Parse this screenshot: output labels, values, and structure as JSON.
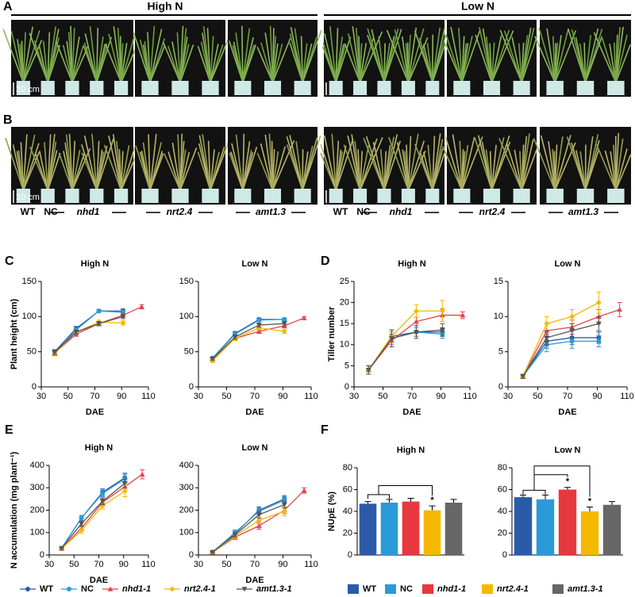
{
  "photos": {
    "panels": [
      "A",
      "B"
    ],
    "groups": [
      "High N",
      "Low N"
    ],
    "scale_bar": "20 cm",
    "genotypes": [
      "WT",
      "NC",
      "nhd1",
      "nrt2.4",
      "amt1.3"
    ]
  },
  "chart_data": [
    {
      "type": "line",
      "panel": "C",
      "title": "High N",
      "xlabel": "DAE",
      "ylabel": "Plant height (cm)",
      "xlim": [
        30,
        110
      ],
      "xticks": [
        30,
        50,
        70,
        90,
        110
      ],
      "ylim": [
        0,
        150
      ],
      "yticks": [
        0,
        50,
        100,
        150
      ],
      "series": [
        {
          "name": "WT",
          "color": "#2b5ba8",
          "marker": "circle",
          "x": [
            40,
            56,
            73,
            91
          ],
          "values": [
            50,
            83,
            108,
            108
          ],
          "errors": [
            3,
            3,
            2,
            3
          ]
        },
        {
          "name": "NC",
          "color": "#2b9ad8",
          "marker": "circle",
          "x": [
            40,
            56,
            73,
            91
          ],
          "values": [
            48,
            81,
            108,
            106
          ],
          "errors": [
            3,
            3,
            2,
            3
          ]
        },
        {
          "name": "nhd1-1",
          "color": "#e0474c",
          "marker": "triangle",
          "italic": true,
          "x": [
            40,
            56,
            73,
            91,
            105
          ],
          "values": [
            48,
            75,
            90,
            102,
            114
          ],
          "errors": [
            3,
            3,
            3,
            3,
            3
          ]
        },
        {
          "name": "nrt2.4-1",
          "color": "#f5b800",
          "marker": "diamond",
          "italic": true,
          "x": [
            40,
            56,
            73,
            91
          ],
          "values": [
            47,
            78,
            92,
            91
          ],
          "errors": [
            3,
            3,
            3,
            3
          ]
        },
        {
          "name": "amt1.3-1",
          "color": "#555555",
          "marker": "triangle-down",
          "italic": true,
          "x": [
            40,
            56,
            73,
            91
          ],
          "values": [
            49,
            78,
            90,
            100
          ],
          "errors": [
            3,
            3,
            3,
            3
          ]
        }
      ]
    },
    {
      "type": "line",
      "title": "Low N",
      "xlabel": "DAE",
      "xlim": [
        30,
        110
      ],
      "xticks": [
        30,
        50,
        70,
        90,
        110
      ],
      "ylim": [
        0,
        150
      ],
      "yticks": [
        0,
        50,
        100,
        150
      ],
      "series": [
        {
          "name": "WT",
          "color": "#2b5ba8",
          "marker": "circle",
          "x": [
            40,
            56,
            73,
            91
          ],
          "values": [
            41,
            76,
            96,
            96
          ],
          "errors": [
            2,
            3,
            2,
            2
          ]
        },
        {
          "name": "NC",
          "color": "#2b9ad8",
          "marker": "circle",
          "x": [
            40,
            56,
            73,
            91
          ],
          "values": [
            41,
            75,
            95,
            96
          ],
          "errors": [
            2,
            3,
            2,
            2
          ]
        },
        {
          "name": "nhd1-1",
          "color": "#e0474c",
          "marker": "triangle",
          "italic": true,
          "x": [
            40,
            56,
            73,
            91,
            105
          ],
          "values": [
            39,
            69,
            79,
            87,
            98
          ],
          "errors": [
            2,
            3,
            3,
            3,
            2
          ]
        },
        {
          "name": "nrt2.4-1",
          "color": "#f5b800",
          "marker": "diamond",
          "italic": true,
          "x": [
            40,
            56,
            73,
            91
          ],
          "values": [
            37,
            69,
            84,
            79
          ],
          "errors": [
            2,
            3,
            3,
            3
          ]
        },
        {
          "name": "amt1.3-1",
          "color": "#555555",
          "marker": "triangle-down",
          "italic": true,
          "x": [
            40,
            56,
            73,
            91
          ],
          "values": [
            40,
            71,
            88,
            90
          ],
          "errors": [
            2,
            3,
            3,
            3
          ]
        }
      ]
    },
    {
      "type": "line",
      "panel": "D",
      "title": "High N",
      "xlabel": "DAE",
      "ylabel": "Tiller number",
      "xlim": [
        30,
        110
      ],
      "xticks": [
        30,
        50,
        70,
        90,
        110
      ],
      "ylim": [
        0,
        25
      ],
      "yticks": [
        0,
        5,
        10,
        15,
        20,
        25
      ],
      "series": [
        {
          "name": "WT",
          "color": "#2b5ba8",
          "marker": "circle",
          "x": [
            40,
            56,
            73,
            91
          ],
          "values": [
            4,
            12,
            13,
            13
          ],
          "errors": [
            1,
            1.5,
            1,
            1
          ]
        },
        {
          "name": "NC",
          "color": "#2b9ad8",
          "marker": "circle",
          "x": [
            40,
            56,
            73,
            91
          ],
          "values": [
            4,
            11.5,
            13,
            12.5
          ],
          "errors": [
            1,
            1.5,
            1,
            1
          ]
        },
        {
          "name": "nhd1-1",
          "color": "#e0474c",
          "marker": "triangle",
          "italic": true,
          "x": [
            40,
            56,
            73,
            91,
            105
          ],
          "values": [
            4,
            11,
            15.5,
            17,
            17
          ],
          "errors": [
            1,
            1.5,
            1,
            1.5,
            0.8
          ]
        },
        {
          "name": "nrt2.4-1",
          "color": "#f5b800",
          "marker": "diamond",
          "italic": true,
          "x": [
            40,
            56,
            73,
            91
          ],
          "values": [
            4,
            12,
            18,
            18
          ],
          "errors": [
            1,
            1.5,
            1.5,
            2.5
          ]
        },
        {
          "name": "amt1.3-1",
          "color": "#555555",
          "marker": "triangle-down",
          "italic": true,
          "x": [
            40,
            56,
            73,
            91
          ],
          "values": [
            4,
            11.5,
            13,
            13.5
          ],
          "errors": [
            1,
            2,
            1.5,
            1.5
          ]
        }
      ]
    },
    {
      "type": "line",
      "title": "Low N",
      "xlabel": "DAE",
      "xlim": [
        30,
        110
      ],
      "xticks": [
        30,
        50,
        70,
        90,
        110
      ],
      "ylim": [
        0,
        15
      ],
      "yticks": [
        0,
        5,
        10,
        15
      ],
      "series": [
        {
          "name": "WT",
          "color": "#2b5ba8",
          "marker": "circle",
          "x": [
            40,
            56,
            73,
            91
          ],
          "values": [
            1.5,
            6.5,
            7,
            7
          ],
          "errors": [
            0.3,
            1,
            1,
            0.8
          ]
        },
        {
          "name": "NC",
          "color": "#2b9ad8",
          "marker": "circle",
          "x": [
            40,
            56,
            73,
            91
          ],
          "values": [
            1.5,
            6,
            6.5,
            6.5
          ],
          "errors": [
            0.3,
            1,
            1,
            0.8
          ]
        },
        {
          "name": "nhd1-1",
          "color": "#e0474c",
          "marker": "triangle",
          "italic": true,
          "x": [
            40,
            56,
            73,
            91,
            105
          ],
          "values": [
            1.5,
            8,
            8.5,
            10,
            11
          ],
          "errors": [
            0.3,
            1,
            1,
            1,
            1
          ]
        },
        {
          "name": "nrt2.4-1",
          "color": "#f5b800",
          "marker": "diamond",
          "italic": true,
          "x": [
            40,
            56,
            73,
            91
          ],
          "values": [
            1.5,
            9,
            10,
            12
          ],
          "errors": [
            0.3,
            1,
            1,
            1.5
          ]
        },
        {
          "name": "amt1.3-1",
          "color": "#555555",
          "marker": "triangle-down",
          "italic": true,
          "x": [
            40,
            56,
            73,
            91
          ],
          "values": [
            1.5,
            7,
            8,
            9
          ],
          "errors": [
            0.3,
            1,
            1,
            1
          ]
        }
      ]
    },
    {
      "type": "line",
      "panel": "E",
      "title": "High N",
      "xlabel": "DAE",
      "ylabel": "N accumulation (mg plant⁻¹)",
      "xlim": [
        30,
        110
      ],
      "xticks": [
        30,
        50,
        70,
        90,
        110
      ],
      "ylim": [
        0,
        400
      ],
      "yticks": [
        0,
        100,
        200,
        300,
        400
      ],
      "series": [
        {
          "name": "WT",
          "color": "#2b5ba8",
          "marker": "circle",
          "x": [
            40,
            56,
            73,
            91
          ],
          "values": [
            30,
            165,
            280,
            345
          ],
          "errors": [
            5,
            12,
            15,
            20
          ]
        },
        {
          "name": "NC",
          "color": "#2b9ad8",
          "marker": "circle",
          "x": [
            40,
            56,
            73,
            91
          ],
          "values": [
            30,
            165,
            275,
            340
          ],
          "errors": [
            5,
            12,
            15,
            20
          ]
        },
        {
          "name": "nhd1-1",
          "color": "#e0474c",
          "marker": "triangle",
          "italic": true,
          "x": [
            40,
            56,
            73,
            91,
            105
          ],
          "values": [
            28,
            120,
            235,
            305,
            360
          ],
          "errors": [
            5,
            12,
            15,
            20,
            20
          ]
        },
        {
          "name": "nrt2.4-1",
          "color": "#f5b800",
          "marker": "diamond",
          "italic": true,
          "x": [
            40,
            56,
            73,
            91
          ],
          "values": [
            28,
            110,
            220,
            285
          ],
          "errors": [
            5,
            12,
            15,
            25
          ]
        },
        {
          "name": "amt1.3-1",
          "color": "#555555",
          "marker": "triangle-down",
          "italic": true,
          "x": [
            40,
            56,
            73,
            91
          ],
          "values": [
            30,
            140,
            240,
            320
          ],
          "errors": [
            5,
            12,
            15,
            20
          ]
        }
      ]
    },
    {
      "type": "line",
      "title": "Low N",
      "xlabel": "DAE",
      "xlim": [
        30,
        110
      ],
      "xticks": [
        30,
        50,
        70,
        90,
        110
      ],
      "ylim": [
        0,
        400
      ],
      "yticks": [
        0,
        100,
        200,
        300,
        400
      ],
      "series": [
        {
          "name": "WT",
          "color": "#2b5ba8",
          "marker": "circle",
          "x": [
            40,
            56,
            73,
            91
          ],
          "values": [
            13,
            95,
            200,
            250
          ],
          "errors": [
            3,
            12,
            15,
            15
          ]
        },
        {
          "name": "NC",
          "color": "#2b9ad8",
          "marker": "circle",
          "x": [
            40,
            56,
            73,
            91
          ],
          "values": [
            13,
            100,
            195,
            245
          ],
          "errors": [
            3,
            12,
            15,
            15
          ]
        },
        {
          "name": "nhd1-1",
          "color": "#e0474c",
          "marker": "triangle",
          "italic": true,
          "x": [
            40,
            56,
            73,
            91,
            105
          ],
          "values": [
            12,
            80,
            130,
            200,
            288
          ],
          "errors": [
            3,
            10,
            15,
            15,
            12
          ]
        },
        {
          "name": "nrt2.4-1",
          "color": "#f5b800",
          "marker": "diamond",
          "italic": true,
          "x": [
            40,
            56,
            73,
            91
          ],
          "values": [
            12,
            85,
            155,
            195
          ],
          "errors": [
            3,
            10,
            15,
            20
          ]
        },
        {
          "name": "amt1.3-1",
          "color": "#555555",
          "marker": "triangle-down",
          "italic": true,
          "x": [
            40,
            56,
            73,
            91
          ],
          "values": [
            13,
            90,
            180,
            225
          ],
          "errors": [
            3,
            10,
            15,
            15
          ]
        }
      ]
    },
    {
      "type": "bar",
      "panel": "F",
      "title": "High N",
      "ylabel": "NUpE (%)",
      "ylim": [
        0,
        80
      ],
      "yticks": [
        0,
        20,
        40,
        60,
        80
      ],
      "categories": [
        "WT",
        "NC",
        "nhd1-1",
        "nrt2.4-1",
        "amt1.3-1"
      ],
      "colors": [
        "#2b5ba8",
        "#2b9ad8",
        "#e8383f",
        "#f5b800",
        "#666666"
      ],
      "italic": [
        false,
        false,
        true,
        true,
        true
      ],
      "values": [
        47,
        48,
        49,
        41,
        48
      ],
      "errors": [
        2,
        3,
        3,
        4,
        3
      ],
      "significance": [
        null,
        null,
        null,
        "*",
        null
      ]
    },
    {
      "type": "bar",
      "title": "Low N",
      "ylim": [
        0,
        80
      ],
      "yticks": [
        0,
        20,
        40,
        60,
        80
      ],
      "categories": [
        "WT",
        "NC",
        "nhd1-1",
        "nrt2.4-1",
        "amt1.3-1"
      ],
      "colors": [
        "#2b5ba8",
        "#2b9ad8",
        "#e8383f",
        "#f5b800",
        "#666666"
      ],
      "values": [
        53,
        51,
        60,
        40,
        46
      ],
      "errors": [
        2,
        4,
        2,
        4,
        3
      ],
      "significance": [
        null,
        null,
        "*",
        "*",
        null
      ]
    }
  ]
}
